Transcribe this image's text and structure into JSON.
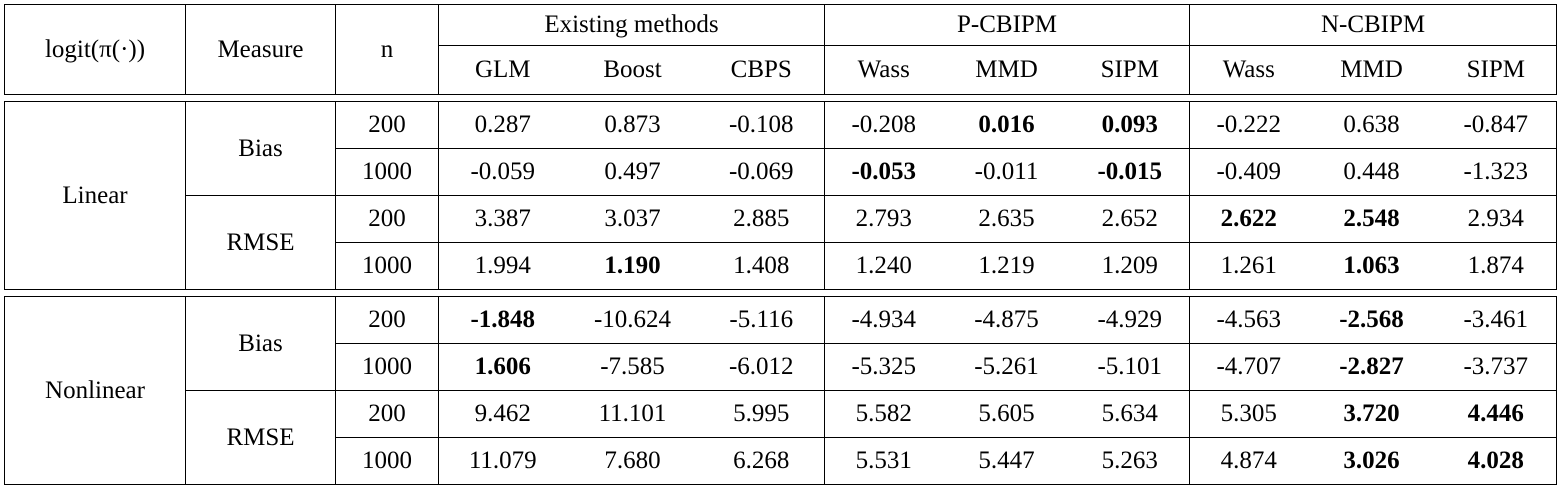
{
  "header": {
    "col_logit": "logit(π(·))",
    "col_measure": "Measure",
    "col_n": "n",
    "groups": [
      "Existing methods",
      "P-CBIPM",
      "N-CBIPM"
    ],
    "methods": [
      "GLM",
      "Boost",
      "CBPS",
      "Wass",
      "MMD",
      "SIPM",
      "Wass",
      "MMD",
      "SIPM"
    ]
  },
  "blocks": [
    {
      "model": "Linear",
      "measures": [
        {
          "name": "Bias",
          "rows": [
            {
              "n": "200",
              "values": [
                "0.287",
                "0.873",
                "-0.108",
                "-0.208",
                "0.016",
                "0.093",
                "-0.222",
                "0.638",
                "-0.847"
              ],
              "bold": [
                false,
                false,
                false,
                false,
                true,
                true,
                false,
                false,
                false
              ]
            },
            {
              "n": "1000",
              "values": [
                "-0.059",
                "0.497",
                "-0.069",
                "-0.053",
                "-0.011",
                "-0.015",
                "-0.409",
                "0.448",
                "-1.323"
              ],
              "bold": [
                false,
                false,
                false,
                true,
                false,
                true,
                false,
                false,
                false
              ]
            }
          ]
        },
        {
          "name": "RMSE",
          "rows": [
            {
              "n": "200",
              "values": [
                "3.387",
                "3.037",
                "2.885",
                "2.793",
                "2.635",
                "2.652",
                "2.622",
                "2.548",
                "2.934"
              ],
              "bold": [
                false,
                false,
                false,
                false,
                false,
                false,
                true,
                true,
                false
              ]
            },
            {
              "n": "1000",
              "values": [
                "1.994",
                "1.190",
                "1.408",
                "1.240",
                "1.219",
                "1.209",
                "1.261",
                "1.063",
                "1.874"
              ],
              "bold": [
                false,
                true,
                false,
                false,
                false,
                false,
                false,
                true,
                false
              ]
            }
          ]
        }
      ]
    },
    {
      "model": "Nonlinear",
      "measures": [
        {
          "name": "Bias",
          "rows": [
            {
              "n": "200",
              "values": [
                "-1.848",
                "-10.624",
                "-5.116",
                "-4.934",
                "-4.875",
                "-4.929",
                "-4.563",
                "-2.568",
                "-3.461"
              ],
              "bold": [
                true,
                false,
                false,
                false,
                false,
                false,
                false,
                true,
                false
              ]
            },
            {
              "n": "1000",
              "values": [
                "1.606",
                "-7.585",
                "-6.012",
                "-5.325",
                "-5.261",
                "-5.101",
                "-4.707",
                "-2.827",
                "-3.737"
              ],
              "bold": [
                true,
                false,
                false,
                false,
                false,
                false,
                false,
                true,
                false
              ]
            }
          ]
        },
        {
          "name": "RMSE",
          "rows": [
            {
              "n": "200",
              "values": [
                "9.462",
                "11.101",
                "5.995",
                "5.582",
                "5.605",
                "5.634",
                "5.305",
                "3.720",
                "4.446"
              ],
              "bold": [
                false,
                false,
                false,
                false,
                false,
                false,
                false,
                true,
                true
              ]
            },
            {
              "n": "1000",
              "values": [
                "11.079",
                "7.680",
                "6.268",
                "5.531",
                "5.447",
                "5.263",
                "4.874",
                "3.026",
                "4.028"
              ],
              "bold": [
                false,
                false,
                false,
                false,
                false,
                false,
                false,
                true,
                true
              ]
            }
          ]
        }
      ]
    }
  ]
}
